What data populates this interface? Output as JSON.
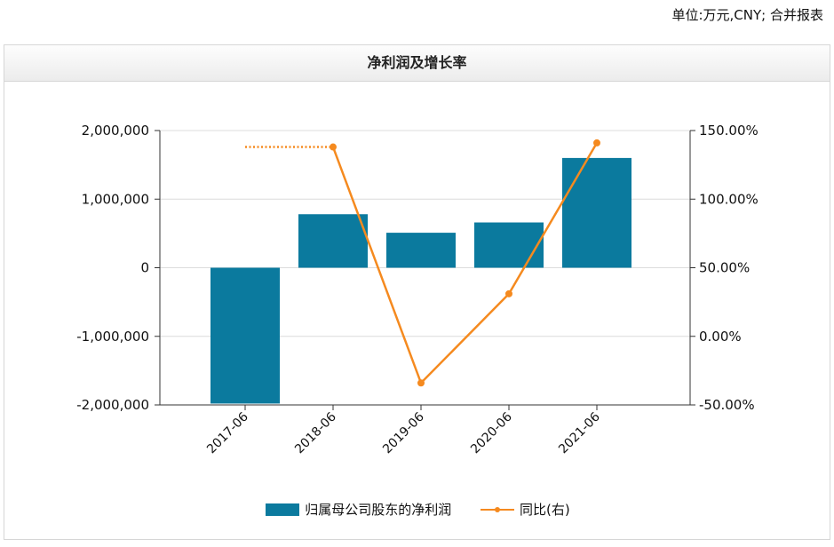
{
  "unit_note": "单位:万元,CNY; 合并报表",
  "chart_data": {
    "type": "bar",
    "title": "净利润及增长率",
    "categories": [
      "2017-06",
      "2018-06",
      "2019-06",
      "2020-06",
      "2021-06"
    ],
    "series": [
      {
        "name": "归属母公司股东的净利润",
        "type": "bar",
        "axis": "left",
        "color": "#0b7a9e",
        "values": [
          -1980000,
          780000,
          510000,
          660000,
          1600000
        ]
      },
      {
        "name": "同比(右)",
        "type": "line",
        "axis": "right",
        "color": "#f58a1f",
        "values": [
          null,
          138,
          -34,
          31,
          141
        ]
      }
    ],
    "y_left": {
      "ylim": [
        -2000000,
        2000000
      ],
      "ticks": [
        2000000,
        1000000,
        0,
        -1000000,
        -2000000
      ],
      "tick_labels": [
        "2,000,000",
        "1,000,000",
        "0",
        "-1,000,000",
        "-2,000,000"
      ]
    },
    "y_right": {
      "ylim": [
        -50,
        150
      ],
      "ticks": [
        150,
        100,
        50,
        0,
        -50
      ],
      "tick_labels": [
        "150.00%",
        "100.00%",
        "50.00%",
        "0.00%",
        "-50.00%"
      ]
    },
    "dotted_reference_value": 138,
    "grid": true,
    "legend_position": "bottom"
  }
}
